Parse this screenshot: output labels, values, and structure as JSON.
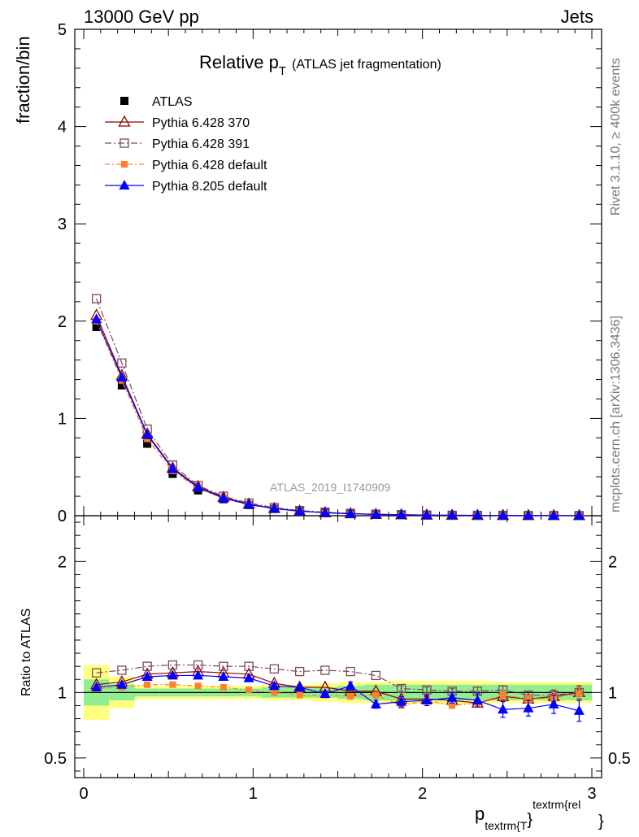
{
  "header": {
    "left": "13000 GeV pp",
    "right": "Jets"
  },
  "side_labels": {
    "rivet": "Rivet 3.1.10, ≥ 400k events",
    "mcplots": "mcplots.cern.ch [arXiv:1306.3436]"
  },
  "colors": {
    "atlas": "#000000",
    "p370": "#8b0000",
    "p391": "#7a4a5c",
    "p6def": "#ff7f2a",
    "p8def": "#0000ff",
    "band_green": "#90ee90",
    "band_yellow": "#ffff80"
  },
  "chart_data": [
    {
      "type": "line",
      "title": "Relative p",
      "title_subscript": "T",
      "title_suffix": "(ATLAS jet fragmentation)",
      "watermark": "ATLAS_2019_I1740909",
      "ylabel": "fraction/bin",
      "xlim": [
        0,
        3.0
      ],
      "ylim": [
        0,
        5
      ],
      "y_ticks": [
        0,
        1,
        2,
        3,
        4,
        5
      ],
      "y_tick_labels": [
        "0",
        "1",
        "2",
        "3",
        "4",
        "5"
      ],
      "x": [
        0.075,
        0.225,
        0.375,
        0.525,
        0.675,
        0.825,
        0.975,
        1.125,
        1.275,
        1.425,
        1.575,
        1.725,
        1.875,
        2.025,
        2.175,
        2.325,
        2.475,
        2.625,
        2.775,
        2.925
      ],
      "legend": [
        "ATLAS",
        "Pythia 6.428 370",
        "Pythia 6.428 391",
        "Pythia 6.428 default",
        "Pythia 8.205 default"
      ],
      "series": [
        {
          "name": "ATLAS",
          "key": "atlas",
          "values": [
            1.94,
            1.34,
            0.74,
            0.43,
            0.26,
            0.17,
            0.11,
            0.07,
            0.045,
            0.03,
            0.02,
            0.014,
            0.01,
            0.007,
            0.005,
            0.004,
            0.003,
            0.002,
            0.0015,
            0.001
          ]
        },
        {
          "name": "Pythia 6.428 370",
          "key": "p370",
          "values": [
            2.06,
            1.44,
            0.84,
            0.49,
            0.3,
            0.19,
            0.12,
            0.075,
            0.048,
            0.031,
            0.021,
            0.014,
            0.0095,
            0.0067,
            0.0047,
            0.0036,
            0.0029,
            0.0019,
            0.0014,
            0.001
          ]
        },
        {
          "name": "Pythia 6.428 391",
          "key": "p391",
          "values": [
            2.23,
            1.57,
            0.89,
            0.52,
            0.31,
            0.2,
            0.13,
            0.083,
            0.053,
            0.036,
            0.024,
            0.016,
            0.0103,
            0.0072,
            0.0051,
            0.0041,
            0.0031,
            0.0019,
            0.0015,
            0.001
          ]
        },
        {
          "name": "Pythia 6.428 default",
          "key": "p6def",
          "values": [
            2.0,
            1.39,
            0.79,
            0.46,
            0.28,
            0.18,
            0.114,
            0.071,
            0.044,
            0.03,
            0.0195,
            0.0137,
            0.009,
            0.0066,
            0.0045,
            0.0037,
            0.003,
            0.0019,
            0.0015,
            0.001
          ]
        },
        {
          "name": "Pythia 8.205 default",
          "key": "p8def",
          "values": [
            2.02,
            1.42,
            0.83,
            0.48,
            0.29,
            0.18,
            0.115,
            0.074,
            0.047,
            0.03,
            0.021,
            0.013,
            0.0093,
            0.0066,
            0.0048,
            0.0037,
            0.0026,
            0.0018,
            0.0014,
            0.00086
          ]
        }
      ]
    },
    {
      "type": "line",
      "title": "",
      "ylabel": "Ratio to ATLAS",
      "xlabel_main": "p",
      "xlabel_sub": "textrm{T",
      "xlabel_brace": "}",
      "xlabel_sup": "textrm{rel",
      "xlabel_sup_brace": "}",
      "xlim": [
        0,
        3.0
      ],
      "ylim": [
        0.35,
        2.35
      ],
      "y_ticks": [
        0.5,
        1,
        2
      ],
      "y_tick_labels": [
        "0.5",
        "1",
        "2"
      ],
      "x_ticks": [
        0,
        1,
        2,
        3
      ],
      "x_tick_labels": [
        "0",
        "1",
        "2",
        "3"
      ],
      "x": [
        0.075,
        0.225,
        0.375,
        0.525,
        0.675,
        0.825,
        0.975,
        1.125,
        1.275,
        1.425,
        1.575,
        1.725,
        1.875,
        2.025,
        2.175,
        2.325,
        2.475,
        2.625,
        2.775,
        2.925
      ],
      "band_edges": [
        0,
        0.15,
        0.3,
        0.45,
        0.6,
        0.75,
        0.9,
        1.05,
        1.2,
        1.35,
        1.5,
        1.65,
        1.8,
        1.95,
        2.1,
        2.25,
        2.4,
        2.55,
        2.7,
        2.85,
        3.0
      ],
      "band_inner": [
        0.1,
        0.06,
        0.03,
        0.03,
        0.03,
        0.03,
        0.03,
        0.04,
        0.04,
        0.04,
        0.05,
        0.06,
        0.06,
        0.06,
        0.06,
        0.06,
        0.06,
        0.06,
        0.06,
        0.06
      ],
      "band_outer": [
        0.21,
        0.12,
        0.05,
        0.05,
        0.05,
        0.05,
        0.05,
        0.06,
        0.06,
        0.07,
        0.08,
        0.08,
        0.09,
        0.09,
        0.09,
        0.09,
        0.08,
        0.08,
        0.08,
        0.08
      ],
      "series": [
        {
          "name": "Pythia 6.428 370",
          "key": "p370",
          "values": [
            1.06,
            1.08,
            1.14,
            1.15,
            1.16,
            1.15,
            1.14,
            1.07,
            1.04,
            1.04,
            1.01,
            1.01,
            0.95,
            0.95,
            0.94,
            0.92,
            0.97,
            0.95,
            0.97,
            1.0
          ],
          "errors": [
            0.01,
            0.01,
            0.01,
            0.01,
            0.01,
            0.01,
            0.01,
            0.01,
            0.01,
            0.01,
            0.01,
            0.01,
            0.02,
            0.02,
            0.02,
            0.03,
            0.03,
            0.03,
            0.04,
            0.05
          ]
        },
        {
          "name": "Pythia 6.428 391",
          "key": "p391",
          "values": [
            1.15,
            1.17,
            1.2,
            1.21,
            1.21,
            1.2,
            1.2,
            1.18,
            1.16,
            1.17,
            1.16,
            1.13,
            1.03,
            1.02,
            1.01,
            1.01,
            1.02,
            0.98,
            0.98,
            1.0
          ],
          "errors": [
            0.01,
            0.01,
            0.01,
            0.01,
            0.01,
            0.01,
            0.01,
            0.01,
            0.01,
            0.01,
            0.01,
            0.01,
            0.02,
            0.02,
            0.02,
            0.03,
            0.03,
            0.03,
            0.04,
            0.05
          ]
        },
        {
          "name": "Pythia 6.428 default",
          "key": "p6def",
          "values": [
            1.03,
            1.04,
            1.06,
            1.06,
            1.05,
            1.04,
            1.02,
            1.0,
            0.98,
            0.98,
            0.97,
            0.98,
            0.9,
            0.94,
            0.9,
            0.92,
            0.98,
            0.95,
            0.96,
            0.99
          ],
          "errors": [
            0.01,
            0.01,
            0.01,
            0.01,
            0.01,
            0.01,
            0.01,
            0.01,
            0.01,
            0.01,
            0.01,
            0.01,
            0.02,
            0.02,
            0.02,
            0.03,
            0.03,
            0.03,
            0.04,
            0.05
          ]
        },
        {
          "name": "Pythia 8.205 default",
          "key": "p8def",
          "values": [
            1.04,
            1.06,
            1.12,
            1.13,
            1.13,
            1.12,
            1.11,
            1.05,
            1.04,
            0.99,
            1.05,
            0.91,
            0.93,
            0.94,
            0.96,
            0.94,
            0.87,
            0.88,
            0.91,
            0.86
          ],
          "errors": [
            0.01,
            0.01,
            0.01,
            0.01,
            0.01,
            0.01,
            0.01,
            0.02,
            0.02,
            0.02,
            0.03,
            0.03,
            0.04,
            0.04,
            0.04,
            0.05,
            0.06,
            0.06,
            0.07,
            0.08
          ]
        }
      ]
    }
  ]
}
